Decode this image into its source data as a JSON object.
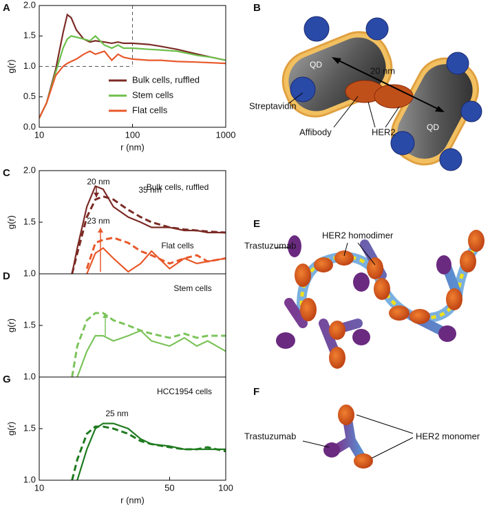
{
  "panels": [
    "A",
    "B",
    "C",
    "D",
    "G",
    "E",
    "F"
  ],
  "chart_data": [
    {
      "type": "line",
      "xscale": "log",
      "xlim": [
        10,
        1000
      ],
      "ylim": [
        0,
        2.0
      ],
      "xticks": [
        10,
        100,
        1000
      ],
      "yticks": [
        {
          "value": 0,
          "label": "0.0"
        },
        0.5,
        {
          "value": 1,
          "label": "1.0"
        },
        1.5,
        {
          "value": 2,
          "label": "2.0"
        }
      ],
      "xlabel": "r (nm)",
      "ylabel": "g(r)",
      "legend": "lower right",
      "hline": 1,
      "vline": 100,
      "x": [
        10,
        12,
        15,
        18,
        20,
        22,
        25,
        30,
        35,
        40,
        50,
        60,
        70,
        80,
        100,
        150,
        200,
        300,
        500,
        700,
        1000
      ],
      "series": [
        {
          "name": "Bulk cells, ruffled",
          "color": "#7b2a25",
          "values": [
            0.15,
            0.4,
            0.95,
            1.55,
            1.85,
            1.8,
            1.6,
            1.45,
            1.4,
            1.42,
            1.4,
            1.38,
            1.4,
            1.38,
            1.38,
            1.36,
            1.33,
            1.28,
            1.2,
            1.15,
            1.1
          ]
        },
        {
          "name": "Stem cells",
          "color": "#6cbf4a",
          "values": [
            0.15,
            0.4,
            0.9,
            1.3,
            1.45,
            1.5,
            1.48,
            1.45,
            1.42,
            1.5,
            1.35,
            1.3,
            1.35,
            1.3,
            1.3,
            1.28,
            1.27,
            1.25,
            1.18,
            1.15,
            1.1
          ]
        },
        {
          "name": "Flat cells",
          "color": "#e8582a",
          "values": [
            0.15,
            0.4,
            0.85,
            1.0,
            1.05,
            1.08,
            1.12,
            1.2,
            1.25,
            1.2,
            1.25,
            1.1,
            1.2,
            1.15,
            1.12,
            1.1,
            1.1,
            1.08,
            1.07,
            1.06,
            1.05
          ]
        }
      ]
    },
    {
      "type": "line",
      "xscale": "log",
      "xlim": [
        10,
        100
      ],
      "ylim": [
        1.0,
        2.0
      ],
      "yticks": [
        {
          "value": 1,
          "label": "1.0"
        },
        1.5,
        {
          "value": 2,
          "label": "2.0"
        }
      ],
      "ylabel": "g(r)",
      "annotations": [
        "Bulk cells, ruffled",
        "20 nm",
        "35 nm",
        "23 nm",
        "Flat cells"
      ],
      "x": [
        15,
        16,
        18,
        20,
        22,
        25,
        30,
        35,
        40,
        50,
        60,
        70,
        80,
        100
      ],
      "series": [
        {
          "color": "#7b2a25",
          "dash": false,
          "values": [
            1.0,
            1.25,
            1.65,
            1.85,
            1.82,
            1.65,
            1.55,
            1.5,
            1.45,
            1.45,
            1.42,
            1.42,
            1.4,
            1.4
          ]
        },
        {
          "color": "#7b2a25",
          "dash": true,
          "values": [
            1.0,
            1.2,
            1.55,
            1.72,
            1.75,
            1.72,
            1.62,
            1.55,
            1.5,
            1.45,
            1.43,
            1.42,
            1.41,
            1.4
          ]
        },
        {
          "color": "#e8582a",
          "dash": false,
          "values": [
            null,
            null,
            1.0,
            1.2,
            1.25,
            1.15,
            1.02,
            1.1,
            1.22,
            1.05,
            1.15,
            1.1,
            1.12,
            1.15
          ]
        },
        {
          "color": "#e8582a",
          "dash": true,
          "values": [
            null,
            null,
            1.05,
            1.3,
            1.33,
            1.35,
            1.3,
            1.22,
            1.18,
            1.1,
            1.15,
            1.18,
            1.12,
            1.15
          ]
        }
      ]
    },
    {
      "type": "line",
      "xscale": "log",
      "xlim": [
        10,
        100
      ],
      "ylim": [
        1.0,
        2.0
      ],
      "yticks": [
        {
          "value": 1,
          "label": "1.0"
        },
        1.5
      ],
      "ylabel": "g(r)",
      "annotations": [
        "Stem cells"
      ],
      "x": [
        15,
        16,
        18,
        20,
        22,
        25,
        30,
        35,
        40,
        50,
        60,
        70,
        80,
        100
      ],
      "series": [
        {
          "color": "#7bc35a",
          "dash": false,
          "values": [
            null,
            1.0,
            1.25,
            1.4,
            1.4,
            1.35,
            1.4,
            1.45,
            1.35,
            1.3,
            1.38,
            1.3,
            1.35,
            1.25
          ]
        },
        {
          "color": "#7bc35a",
          "dash": true,
          "values": [
            1.0,
            1.3,
            1.55,
            1.62,
            1.62,
            1.55,
            1.5,
            1.45,
            1.42,
            1.38,
            1.42,
            1.38,
            1.4,
            1.4
          ]
        }
      ]
    },
    {
      "type": "line",
      "xscale": "log",
      "xlim": [
        10,
        100
      ],
      "ylim": [
        1.0,
        2.0
      ],
      "xticks": [
        10,
        50,
        100
      ],
      "yticks": [
        {
          "value": 1,
          "label": "1.0"
        },
        1.5
      ],
      "xlabel": "r (nm)",
      "ylabel": "g(r)",
      "annotations": [
        "HCC1954 cells",
        "25 nm"
      ],
      "x": [
        15,
        16,
        18,
        20,
        22,
        25,
        30,
        35,
        40,
        50,
        60,
        70,
        80,
        100
      ],
      "series": [
        {
          "color": "#1e7a1e",
          "dash": false,
          "values": [
            null,
            1.0,
            1.3,
            1.5,
            1.55,
            1.55,
            1.5,
            1.4,
            1.35,
            1.33,
            1.3,
            1.3,
            1.3,
            1.3
          ]
        },
        {
          "color": "#1e7a1e",
          "dash": true,
          "values": [
            1.0,
            1.2,
            1.45,
            1.52,
            1.52,
            1.5,
            1.45,
            1.38,
            1.35,
            1.32,
            1.3,
            1.3,
            1.32,
            1.28
          ]
        }
      ]
    }
  ],
  "diagrams": {
    "B": {
      "labels": [
        "QD",
        "QD",
        "20 nm",
        "Streptavidin",
        "Affibody",
        "HER2"
      ]
    },
    "E": {
      "labels": [
        "Trastuzumab",
        "HER2 homodimer"
      ]
    },
    "F": {
      "labels": [
        "Trastuzumab",
        "HER2 monomer"
      ]
    }
  }
}
